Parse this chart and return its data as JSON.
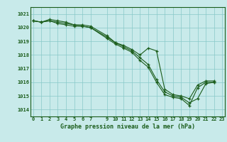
{
  "title": "Graphe pression niveau de la mer (hPa)",
  "background_color": "#c8eaea",
  "plot_bg_color": "#c8eaea",
  "grid_color": "#88c8c8",
  "line_color": "#1a5c1a",
  "ylim": [
    1013.5,
    1021.5
  ],
  "yticks": [
    1014,
    1015,
    1016,
    1017,
    1018,
    1019,
    1020,
    1021
  ],
  "xticks": [
    0,
    1,
    2,
    3,
    4,
    5,
    6,
    7,
    9,
    10,
    11,
    12,
    13,
    14,
    15,
    16,
    17,
    18,
    19,
    20,
    21,
    22,
    23
  ],
  "xlim": [
    -0.3,
    23.3
  ],
  "series1_x": [
    0,
    1,
    2,
    3,
    4,
    5,
    6,
    7,
    9,
    10,
    11,
    12,
    13,
    14,
    15,
    16,
    17,
    18,
    19,
    20,
    21,
    22
  ],
  "series1_y": [
    1020.5,
    1020.4,
    1020.5,
    1020.3,
    1020.2,
    1020.1,
    1020.1,
    1020.0,
    1019.2,
    1018.8,
    1018.5,
    1018.2,
    1017.6,
    1017.1,
    1016.0,
    1015.1,
    1014.9,
    1014.8,
    1014.3,
    1015.6,
    1016.0,
    1016.0
  ],
  "series2_x": [
    0,
    1,
    2,
    3,
    4,
    5,
    6,
    7,
    9,
    10,
    11,
    12,
    13,
    14,
    15,
    16,
    17,
    18,
    19,
    20,
    21,
    22
  ],
  "series2_y": [
    1020.5,
    1020.4,
    1020.6,
    1020.5,
    1020.4,
    1020.2,
    1020.2,
    1020.1,
    1019.4,
    1018.9,
    1018.7,
    1018.4,
    1018.0,
    1018.5,
    1018.3,
    1015.5,
    1015.1,
    1015.0,
    1014.8,
    1015.8,
    1016.1,
    1016.1
  ],
  "series3_x": [
    0,
    1,
    2,
    3,
    4,
    5,
    6,
    7,
    9,
    10,
    11,
    12,
    13,
    14,
    15,
    16,
    17,
    18,
    19,
    20,
    21,
    22
  ],
  "series3_y": [
    1020.5,
    1020.4,
    1020.5,
    1020.4,
    1020.3,
    1020.2,
    1020.1,
    1020.0,
    1019.3,
    1018.9,
    1018.6,
    1018.3,
    1017.8,
    1017.3,
    1016.2,
    1015.3,
    1015.0,
    1014.9,
    1014.5,
    1014.8,
    1015.9,
    1016.0
  ]
}
